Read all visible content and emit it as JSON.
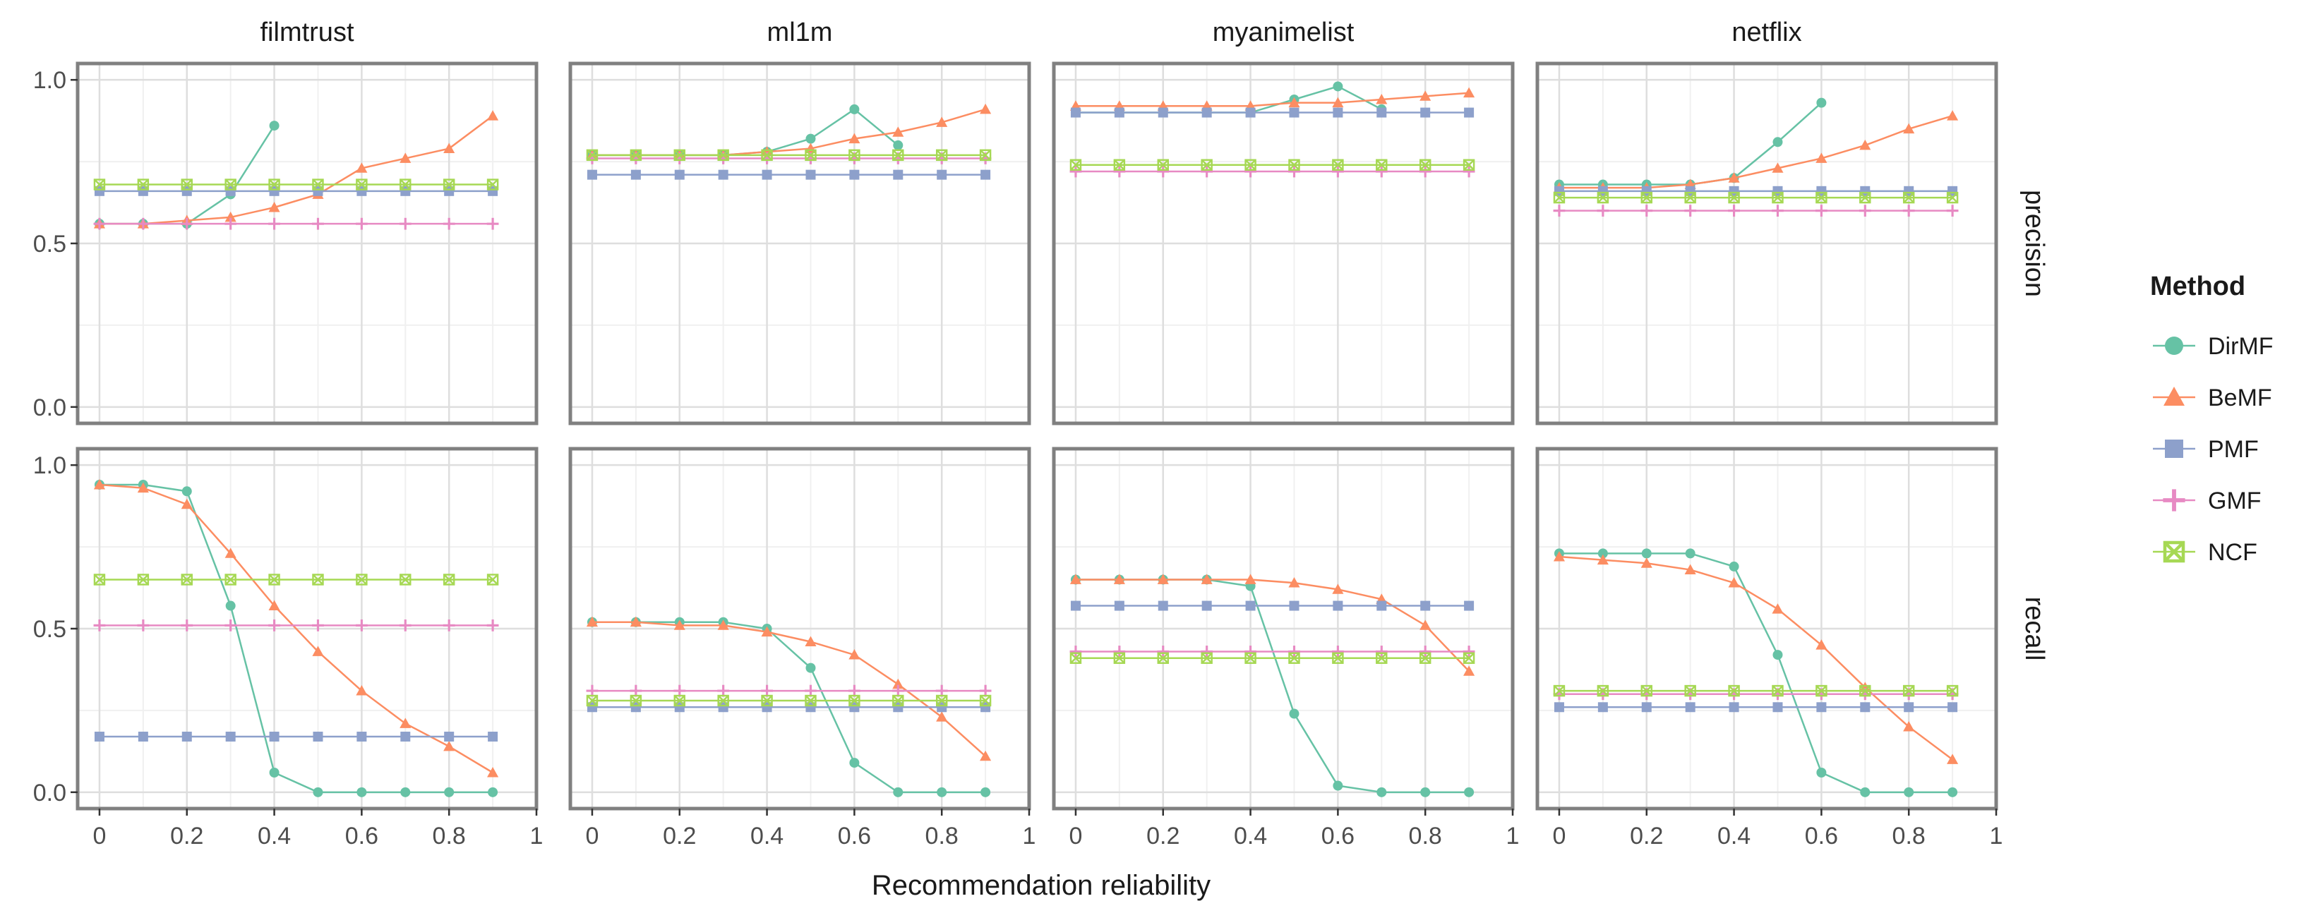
{
  "chart_data": {
    "type": "line",
    "title": "",
    "xlabel": "Recommendation reliability",
    "xlim": [
      -0.05,
      1.0
    ],
    "x_ticks": [
      "0",
      "0.2",
      "0.4",
      "0.6",
      "0.8",
      "1"
    ],
    "ylim": [
      -0.05,
      1.05
    ],
    "y_ticks": [
      "0.0",
      "0.5",
      "1.0"
    ],
    "grid": true,
    "legend_title": "Method",
    "legend_position": "right",
    "datasets": [
      "filmtrust",
      "ml1m",
      "myanimelist",
      "netflix"
    ],
    "metrics": [
      "precision",
      "recall"
    ],
    "x": [
      0,
      0.1,
      0.2,
      0.3,
      0.4,
      0.5,
      0.6,
      0.7,
      0.8,
      0.9
    ],
    "methods": [
      {
        "name": "DirMF",
        "color": "#66c2a5",
        "marker": "circle"
      },
      {
        "name": "BeMF",
        "color": "#fc8d62",
        "marker": "triangle"
      },
      {
        "name": "PMF",
        "color": "#8da0cb",
        "marker": "square"
      },
      {
        "name": "GMF",
        "color": "#e78ac3",
        "marker": "plus"
      },
      {
        "name": "NCF",
        "color": "#a6d854",
        "marker": "boxcross"
      }
    ],
    "panels": {
      "precision": {
        "filmtrust": {
          "DirMF": [
            0.56,
            0.56,
            0.56,
            0.65,
            0.86,
            null,
            null,
            null,
            null,
            null
          ],
          "BeMF": [
            0.56,
            0.56,
            0.57,
            0.58,
            0.61,
            0.65,
            0.73,
            0.76,
            0.79,
            0.89
          ],
          "PMF": [
            0.66,
            0.66,
            0.66,
            0.66,
            0.66,
            0.66,
            0.66,
            0.66,
            0.66,
            0.66
          ],
          "GMF": [
            0.56,
            0.56,
            0.56,
            0.56,
            0.56,
            0.56,
            0.56,
            0.56,
            0.56,
            0.56
          ],
          "NCF": [
            0.68,
            0.68,
            0.68,
            0.68,
            0.68,
            0.68,
            0.68,
            0.68,
            0.68,
            0.68
          ]
        },
        "ml1m": {
          "DirMF": [
            0.77,
            0.77,
            0.77,
            0.77,
            0.78,
            0.82,
            0.91,
            0.8,
            null,
            null
          ],
          "BeMF": [
            0.77,
            0.77,
            0.77,
            0.77,
            0.78,
            0.79,
            0.82,
            0.84,
            0.87,
            0.91
          ],
          "PMF": [
            0.71,
            0.71,
            0.71,
            0.71,
            0.71,
            0.71,
            0.71,
            0.71,
            0.71,
            0.71
          ],
          "GMF": [
            0.76,
            0.76,
            0.76,
            0.76,
            0.76,
            0.76,
            0.76,
            0.76,
            0.76,
            0.76
          ],
          "NCF": [
            0.77,
            0.77,
            0.77,
            0.77,
            0.77,
            0.77,
            0.77,
            0.77,
            0.77,
            0.77
          ]
        },
        "myanimelist": {
          "DirMF": [
            0.9,
            0.9,
            0.9,
            0.9,
            0.9,
            0.94,
            0.98,
            0.91,
            null,
            null
          ],
          "BeMF": [
            0.92,
            0.92,
            0.92,
            0.92,
            0.92,
            0.93,
            0.93,
            0.94,
            0.95,
            0.96
          ],
          "PMF": [
            0.9,
            0.9,
            0.9,
            0.9,
            0.9,
            0.9,
            0.9,
            0.9,
            0.9,
            0.9
          ],
          "GMF": [
            0.72,
            0.72,
            0.72,
            0.72,
            0.72,
            0.72,
            0.72,
            0.72,
            0.72,
            0.72
          ],
          "NCF": [
            0.74,
            0.74,
            0.74,
            0.74,
            0.74,
            0.74,
            0.74,
            0.74,
            0.74,
            0.74
          ]
        },
        "netflix": {
          "DirMF": [
            0.68,
            0.68,
            0.68,
            0.68,
            0.7,
            0.81,
            0.93,
            null,
            null,
            null
          ],
          "BeMF": [
            0.67,
            0.67,
            0.67,
            0.68,
            0.7,
            0.73,
            0.76,
            0.8,
            0.85,
            0.89
          ],
          "PMF": [
            0.66,
            0.66,
            0.66,
            0.66,
            0.66,
            0.66,
            0.66,
            0.66,
            0.66,
            0.66
          ],
          "GMF": [
            0.6,
            0.6,
            0.6,
            0.6,
            0.6,
            0.6,
            0.6,
            0.6,
            0.6,
            0.6
          ],
          "NCF": [
            0.64,
            0.64,
            0.64,
            0.64,
            0.64,
            0.64,
            0.64,
            0.64,
            0.64,
            0.64
          ]
        }
      },
      "recall": {
        "filmtrust": {
          "DirMF": [
            0.94,
            0.94,
            0.92,
            0.57,
            0.06,
            0.0,
            0.0,
            0.0,
            0.0,
            0.0
          ],
          "BeMF": [
            0.94,
            0.93,
            0.88,
            0.73,
            0.57,
            0.43,
            0.31,
            0.21,
            0.14,
            0.06
          ],
          "PMF": [
            0.17,
            0.17,
            0.17,
            0.17,
            0.17,
            0.17,
            0.17,
            0.17,
            0.17,
            0.17
          ],
          "GMF": [
            0.51,
            0.51,
            0.51,
            0.51,
            0.51,
            0.51,
            0.51,
            0.51,
            0.51,
            0.51
          ],
          "NCF": [
            0.65,
            0.65,
            0.65,
            0.65,
            0.65,
            0.65,
            0.65,
            0.65,
            0.65,
            0.65
          ]
        },
        "ml1m": {
          "DirMF": [
            0.52,
            0.52,
            0.52,
            0.52,
            0.5,
            0.38,
            0.09,
            0.0,
            0.0,
            0.0
          ],
          "BeMF": [
            0.52,
            0.52,
            0.51,
            0.51,
            0.49,
            0.46,
            0.42,
            0.33,
            0.23,
            0.11
          ],
          "PMF": [
            0.26,
            0.26,
            0.26,
            0.26,
            0.26,
            0.26,
            0.26,
            0.26,
            0.26,
            0.26
          ],
          "GMF": [
            0.31,
            0.31,
            0.31,
            0.31,
            0.31,
            0.31,
            0.31,
            0.31,
            0.31,
            0.31
          ],
          "NCF": [
            0.28,
            0.28,
            0.28,
            0.28,
            0.28,
            0.28,
            0.28,
            0.28,
            0.28,
            0.28
          ]
        },
        "myanimelist": {
          "DirMF": [
            0.65,
            0.65,
            0.65,
            0.65,
            0.63,
            0.24,
            0.02,
            0.0,
            0.0,
            0.0
          ],
          "BeMF": [
            0.65,
            0.65,
            0.65,
            0.65,
            0.65,
            0.64,
            0.62,
            0.59,
            0.51,
            0.37
          ],
          "PMF": [
            0.57,
            0.57,
            0.57,
            0.57,
            0.57,
            0.57,
            0.57,
            0.57,
            0.57,
            0.57
          ],
          "GMF": [
            0.43,
            0.43,
            0.43,
            0.43,
            0.43,
            0.43,
            0.43,
            0.43,
            0.43,
            0.43
          ],
          "NCF": [
            0.41,
            0.41,
            0.41,
            0.41,
            0.41,
            0.41,
            0.41,
            0.41,
            0.41,
            0.41
          ]
        },
        "netflix": {
          "DirMF": [
            0.73,
            0.73,
            0.73,
            0.73,
            0.69,
            0.42,
            0.06,
            0.0,
            0.0,
            0.0
          ],
          "BeMF": [
            0.72,
            0.71,
            0.7,
            0.68,
            0.64,
            0.56,
            0.45,
            0.32,
            0.2,
            0.1
          ],
          "PMF": [
            0.26,
            0.26,
            0.26,
            0.26,
            0.26,
            0.26,
            0.26,
            0.26,
            0.26,
            0.26
          ],
          "GMF": [
            0.3,
            0.3,
            0.3,
            0.3,
            0.3,
            0.3,
            0.3,
            0.3,
            0.3,
            0.3
          ],
          "NCF": [
            0.31,
            0.31,
            0.31,
            0.31,
            0.31,
            0.31,
            0.31,
            0.31,
            0.31,
            0.31
          ]
        }
      }
    }
  }
}
